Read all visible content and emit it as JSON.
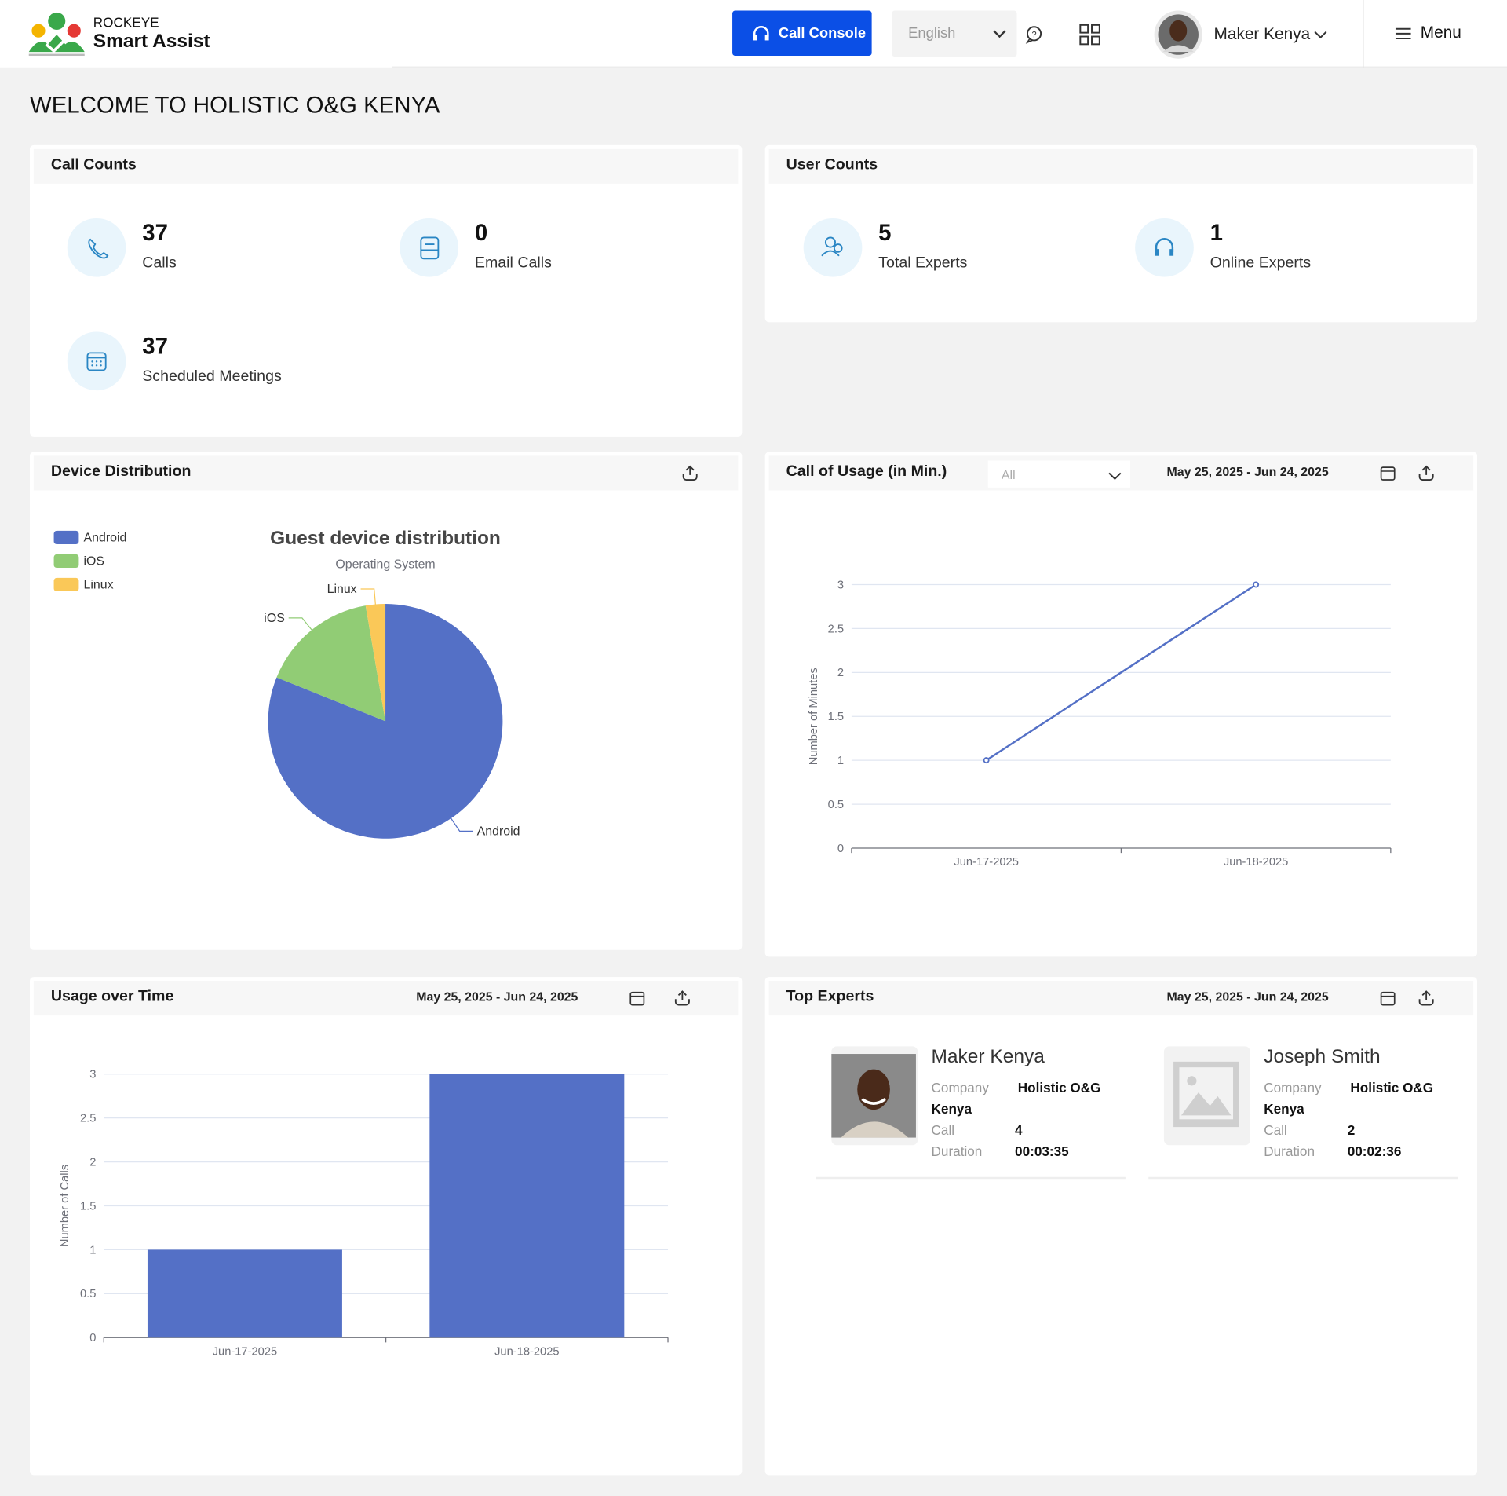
{
  "header": {
    "brand": "ROCKEYE",
    "product": "Smart Assist",
    "call_console": "Call Console",
    "language": "English",
    "user": "Maker Kenya",
    "menu": "Menu"
  },
  "welcome": "WELCOME TO HOLISTIC O&G KENYA",
  "call_counts": {
    "title": "Call Counts",
    "items": [
      {
        "value": 37,
        "label": "Calls"
      },
      {
        "value": 0,
        "label": "Email Calls"
      },
      {
        "value": 37,
        "label": "Scheduled Meetings"
      }
    ]
  },
  "user_counts": {
    "title": "User Counts",
    "items": [
      {
        "value": 5,
        "label": "Total Experts"
      },
      {
        "value": 1,
        "label": "Online Experts"
      }
    ]
  },
  "panels": {
    "device": {
      "title": "Device Distribution"
    },
    "usage_minutes": {
      "title": "Call of Usage (in Min.)",
      "filter": "All",
      "range": "May 25, 2025 - Jun 24, 2025"
    },
    "usage_time": {
      "title": "Usage over Time",
      "range": "May 25, 2025 - Jun 24, 2025"
    },
    "top_experts": {
      "title": "Top Experts",
      "range": "May 25, 2025 - Jun 24, 2025"
    }
  },
  "chart_data": [
    {
      "type": "pie",
      "title": "Guest device distribution",
      "subtitle": "Operating System",
      "categories": [
        "Android",
        "iOS",
        "Linux"
      ],
      "values": [
        30,
        6,
        1
      ],
      "colors": [
        "#5470c6",
        "#91cc75",
        "#fac858"
      ],
      "legend": "top-left"
    },
    {
      "type": "line",
      "y_label": "Number of Minutes",
      "categories": [
        "Jun-17-2025",
        "Jun-18-2025"
      ],
      "values": [
        1,
        3
      ],
      "color": "#5470c6",
      "ylim": [
        0,
        3
      ],
      "yticks": [
        0,
        0.5,
        1,
        1.5,
        2,
        2.5,
        3
      ],
      "grid": true
    },
    {
      "type": "bar",
      "y_label": "Number of Calls",
      "categories": [
        "Jun-17-2025",
        "Jun-18-2025"
      ],
      "values": [
        1,
        3
      ],
      "color": "#5470c6",
      "ylim": [
        0,
        3
      ],
      "yticks": [
        0,
        0.5,
        1,
        1.5,
        2,
        2.5,
        3
      ],
      "grid": true
    }
  ],
  "top_experts": [
    {
      "name": "Maker Kenya",
      "company_label": "Company",
      "company": "Holistic O&G Kenya",
      "call_label": "Call",
      "call": 4,
      "duration_label": "Duration",
      "duration": "00:03:35"
    },
    {
      "name": "Joseph Smith",
      "company_label": "Company",
      "company": "Holistic O&G Kenya",
      "call_label": "Call",
      "call": 2,
      "duration_label": "Duration",
      "duration": "00:02:36"
    }
  ]
}
